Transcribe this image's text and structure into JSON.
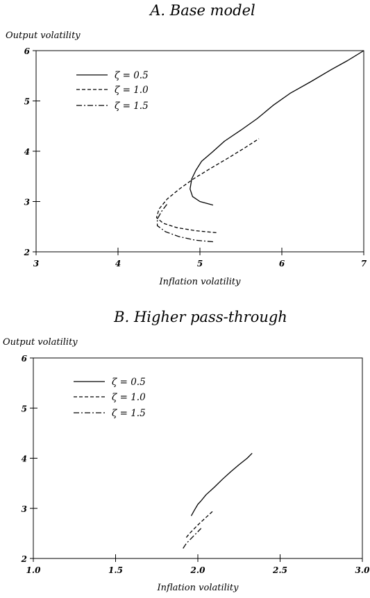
{
  "chart_data": [
    {
      "type": "line",
      "title": "A. Base model",
      "xlabel": "Inflation volatility",
      "ylabel": "Output volatility",
      "xlim": [
        3,
        7
      ],
      "ylim": [
        2,
        6
      ],
      "xticks": [
        "3",
        "4",
        "5",
        "6",
        "7"
      ],
      "yticks": [
        "2",
        "3",
        "4",
        "5",
        "6"
      ],
      "legend_position": "top-left",
      "series": [
        {
          "name": "ζ = 0.5",
          "style": "solid",
          "x": [
            5.16,
            5.0,
            4.91,
            4.88,
            4.9,
            4.95,
            5.02,
            5.15,
            5.3,
            5.5,
            5.7,
            5.9,
            6.1,
            6.35,
            6.6,
            6.8,
            7.0
          ],
          "y": [
            2.93,
            3.0,
            3.1,
            3.25,
            3.45,
            3.62,
            3.8,
            3.98,
            4.2,
            4.42,
            4.65,
            4.92,
            5.15,
            5.38,
            5.62,
            5.8,
            6.0
          ]
        },
        {
          "name": "ζ = 1.0",
          "style": "dashed",
          "x": [
            5.2,
            4.95,
            4.72,
            4.55,
            4.47,
            4.5,
            4.6,
            4.75,
            4.92,
            5.12,
            5.35,
            5.55,
            5.72
          ],
          "y": [
            2.38,
            2.42,
            2.48,
            2.57,
            2.68,
            2.85,
            3.05,
            3.25,
            3.45,
            3.65,
            3.87,
            4.07,
            4.25
          ]
        },
        {
          "name": "ζ = 1.5",
          "style": "dashdot",
          "x": [
            5.16,
            4.95,
            4.75,
            4.58,
            4.48,
            4.48,
            4.53,
            4.6
          ],
          "y": [
            2.2,
            2.23,
            2.3,
            2.4,
            2.52,
            2.65,
            2.8,
            2.95
          ]
        }
      ]
    },
    {
      "type": "line",
      "title": "B. Higher pass-through",
      "xlabel": "Inflation volatility",
      "ylabel": "Output volatility",
      "xlim": [
        1.0,
        3.0
      ],
      "ylim": [
        2,
        6
      ],
      "xticks": [
        "1.0",
        "1.5",
        "2.0",
        "2.5",
        "3.0"
      ],
      "yticks": [
        "2",
        "3",
        "4",
        "5",
        "6"
      ],
      "legend_position": "top-left",
      "series": [
        {
          "name": "ζ = 0.5",
          "style": "solid",
          "x": [
            1.96,
            1.98,
            2.0,
            2.02,
            2.05,
            2.1,
            2.15,
            2.2,
            2.25,
            2.3,
            2.33
          ],
          "y": [
            2.85,
            2.97,
            3.08,
            3.15,
            3.27,
            3.42,
            3.58,
            3.73,
            3.87,
            4.0,
            4.1
          ]
        },
        {
          "name": "ζ = 1.0",
          "style": "dashed",
          "x": [
            1.93,
            1.95,
            1.98,
            2.01,
            2.05,
            2.09
          ],
          "y": [
            2.42,
            2.5,
            2.6,
            2.7,
            2.82,
            2.94
          ]
        },
        {
          "name": "ζ = 1.5",
          "style": "dashdot",
          "x": [
            1.91,
            1.93,
            1.96,
            1.99,
            2.02
          ],
          "y": [
            2.2,
            2.3,
            2.4,
            2.5,
            2.6
          ]
        }
      ]
    }
  ]
}
